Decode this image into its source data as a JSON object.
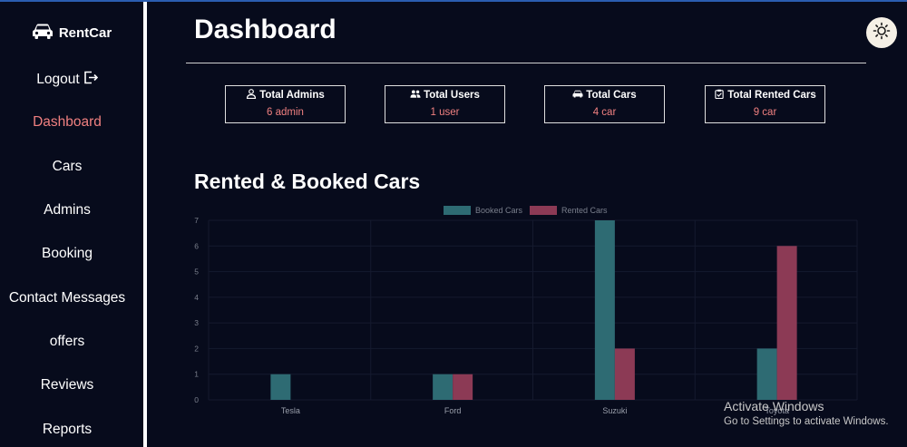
{
  "brand": {
    "name": "RentCar",
    "icon": "car-icon"
  },
  "nav": {
    "logout": "Logout",
    "items": [
      {
        "label": "Dashboard",
        "active": true
      },
      {
        "label": "Cars"
      },
      {
        "label": "Admins"
      },
      {
        "label": "Booking"
      },
      {
        "label": "Contact Messages"
      },
      {
        "label": "offers"
      },
      {
        "label": "Reviews"
      },
      {
        "label": "Reports"
      }
    ]
  },
  "header": {
    "title": "Dashboard",
    "theme_icon": "sun-icon"
  },
  "stats": [
    {
      "title": "Total Admins",
      "value": "6 admin",
      "icon": "user-icon"
    },
    {
      "title": "Total Users",
      "value": "1 user",
      "icon": "users-icon"
    },
    {
      "title": "Total Cars",
      "value": "4 car",
      "icon": "car-icon"
    },
    {
      "title": "Total Rented Cars",
      "value": "9 car",
      "icon": "clipboard-check-icon"
    }
  ],
  "section": {
    "title": "Rented & Booked Cars"
  },
  "colors": {
    "accent": "#f08080",
    "booked": "#2e6b73",
    "rented": "#8c3a55",
    "background": "#070b1c"
  },
  "chart_data": {
    "type": "bar",
    "categories": [
      "Tesla",
      "Ford",
      "Suzuki",
      "Toyota"
    ],
    "series": [
      {
        "name": "Booked Cars",
        "values": [
          1,
          1,
          7,
          2
        ],
        "color": "#2e6b73"
      },
      {
        "name": "Rented Cars",
        "values": [
          0,
          1,
          2,
          6
        ],
        "color": "#8c3a55"
      }
    ],
    "ylim": [
      0,
      7
    ],
    "yticks": [
      "0",
      "1",
      "2",
      "3",
      "4",
      "5",
      "6",
      "7"
    ],
    "legend": "top-center",
    "grid": true
  },
  "watermark": {
    "title": "Activate Windows",
    "subtitle": "Go to Settings to activate Windows."
  }
}
